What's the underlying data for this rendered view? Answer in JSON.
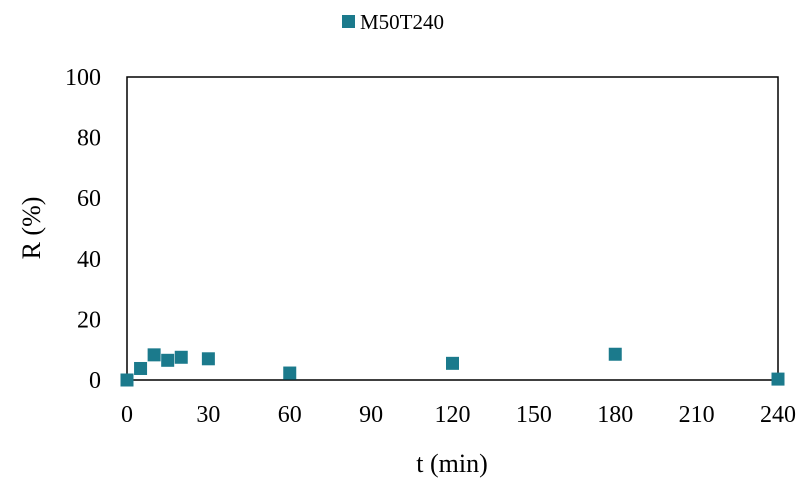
{
  "chart_data": {
    "type": "scatter",
    "title": "",
    "xlabel": "t (min)",
    "ylabel": "R (%)",
    "xlim": [
      0,
      240
    ],
    "ylim": [
      0,
      100
    ],
    "x_ticks": [
      "0",
      "30",
      "60",
      "90",
      "120",
      "150",
      "180",
      "210",
      "240"
    ],
    "y_ticks": [
      "0",
      "20",
      "40",
      "60",
      "80",
      "100"
    ],
    "grid": false,
    "legend_position": "top",
    "series": [
      {
        "name": "M50T240",
        "color": "#1b7a8c",
        "marker": "square",
        "points": [
          {
            "x": 0,
            "y": 0
          },
          {
            "x": 5,
            "y": 3.8
          },
          {
            "x": 10,
            "y": 8.3
          },
          {
            "x": 15,
            "y": 6.5
          },
          {
            "x": 20,
            "y": 7.5
          },
          {
            "x": 30,
            "y": 7.0
          },
          {
            "x": 60,
            "y": 2.3
          },
          {
            "x": 120,
            "y": 5.5
          },
          {
            "x": 180,
            "y": 8.5
          },
          {
            "x": 240,
            "y": 0.3
          }
        ]
      }
    ]
  }
}
